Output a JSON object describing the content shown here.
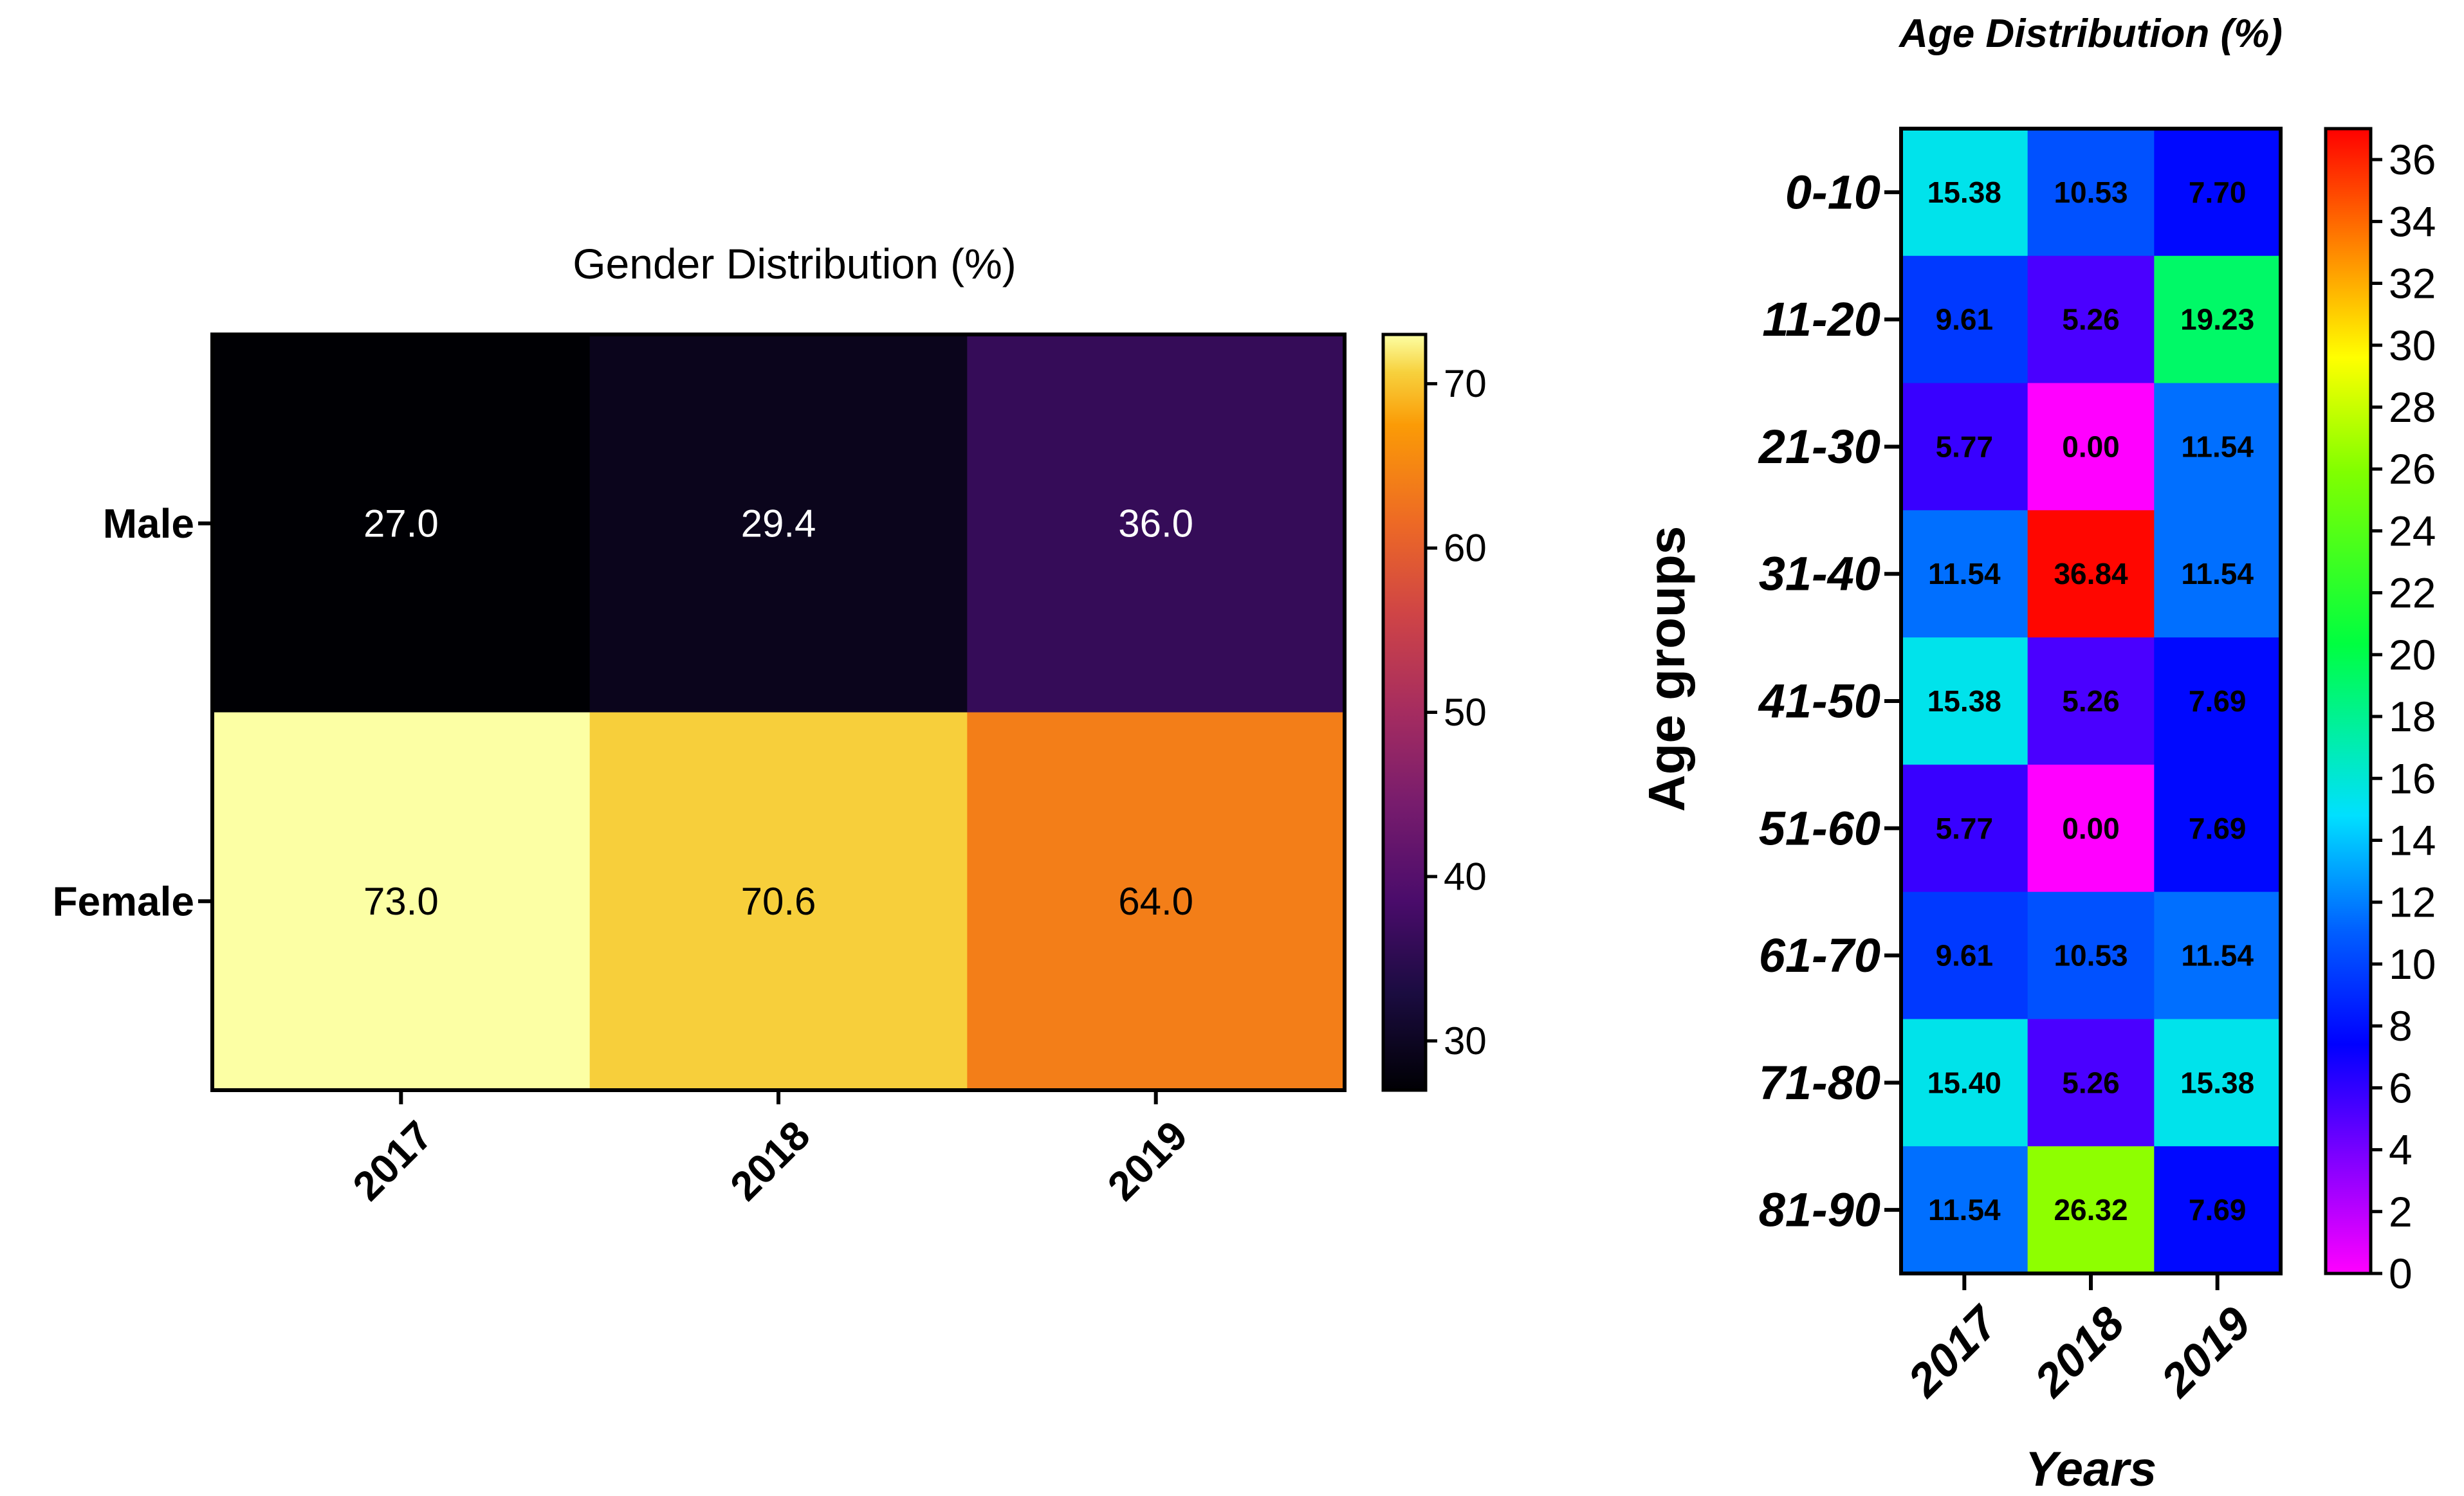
{
  "chart_data": [
    {
      "type": "heatmap",
      "title": "Gender Distribution  (%)",
      "rows": [
        "Male",
        "Female"
      ],
      "columns": [
        "2017",
        "2018",
        "2019"
      ],
      "values": [
        [
          27.0,
          29.4,
          36.0
        ],
        [
          73.0,
          70.6,
          64.0
        ]
      ],
      "labels": [
        [
          "27.0",
          "29.4",
          "36.0"
        ],
        [
          "73.0",
          "70.6",
          "64.0"
        ]
      ],
      "colorbar": {
        "min": 27,
        "max": 73,
        "ticks": [
          "30",
          "40",
          "50",
          "60",
          "70"
        ],
        "colormap": "inferno"
      }
    },
    {
      "type": "heatmap",
      "title": "Age Distribution (%)",
      "ylabel": "Age groups",
      "xlabel": "Years",
      "rows": [
        "0-10",
        "11-20",
        "21-30",
        "31-40",
        "41-50",
        "51-60",
        "61-70",
        "71-80",
        "81-90"
      ],
      "columns": [
        "2017",
        "2018",
        "2019"
      ],
      "values": [
        [
          15.38,
          10.53,
          7.7
        ],
        [
          9.61,
          5.26,
          19.23
        ],
        [
          5.77,
          0.0,
          11.54
        ],
        [
          11.54,
          36.84,
          11.54
        ],
        [
          15.38,
          5.26,
          7.69
        ],
        [
          5.77,
          0.0,
          7.69
        ],
        [
          9.61,
          10.53,
          11.54
        ],
        [
          15.4,
          5.26,
          15.38
        ],
        [
          11.54,
          26.32,
          7.69
        ]
      ],
      "labels": [
        [
          "15.38",
          "10.53",
          "7.70"
        ],
        [
          "9.61",
          "5.26",
          "19.23"
        ],
        [
          "5.77",
          "0.00",
          "11.54"
        ],
        [
          "11.54",
          "36.84",
          "11.54"
        ],
        [
          "15.38",
          "5.26",
          "7.69"
        ],
        [
          "5.77",
          "0.00",
          "7.69"
        ],
        [
          "9.61",
          "10.53",
          "11.54"
        ],
        [
          "15.40",
          "5.26",
          "15.38"
        ],
        [
          "11.54",
          "26.32",
          "7.69"
        ]
      ],
      "colorbar": {
        "min": 0,
        "max": 37,
        "ticks": [
          "0",
          "2",
          "4",
          "6",
          "8",
          "10",
          "12",
          "14",
          "16",
          "18",
          "20",
          "22",
          "24",
          "26",
          "28",
          "30",
          "32",
          "34",
          "36"
        ],
        "colormap": "rainbow"
      }
    }
  ]
}
